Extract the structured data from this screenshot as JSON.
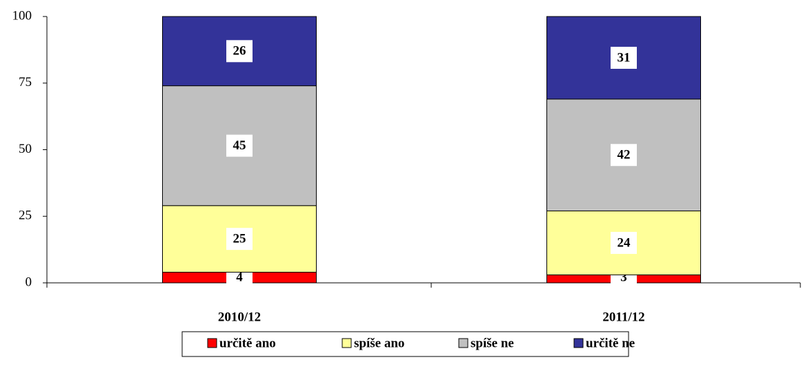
{
  "chart_data": {
    "type": "stacked_bar",
    "categories": [
      "2010/12",
      "2011/12"
    ],
    "series": [
      {
        "name": "určitě ano",
        "color": "#ff0000",
        "values": [
          4,
          3
        ]
      },
      {
        "name": "spíše ano",
        "color": "#ffff99",
        "values": [
          25,
          24
        ]
      },
      {
        "name": "spíše ne",
        "color": "#c0c0c0",
        "values": [
          45,
          42
        ]
      },
      {
        "name": "určitě ne",
        "color": "#333399",
        "values": [
          26,
          31
        ]
      }
    ],
    "ylim": [
      0,
      100
    ],
    "yticks": [
      0,
      25,
      50,
      75,
      100
    ],
    "grid": false,
    "legend": "bottom"
  }
}
